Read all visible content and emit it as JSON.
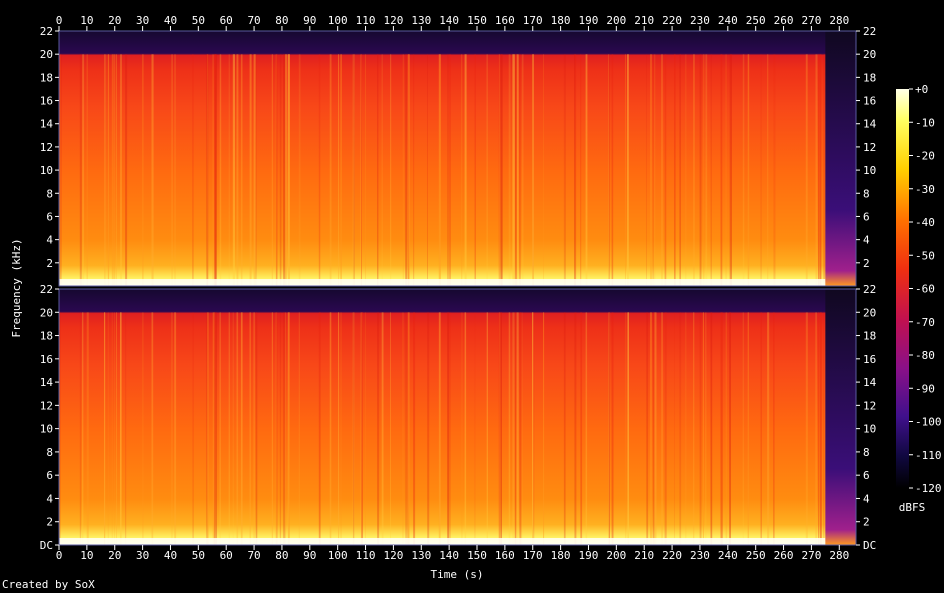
{
  "chart_data": {
    "type": "heatmap",
    "xlabel": "Time (s)",
    "ylabel": "Frequency (kHz)",
    "x_ticks": [
      "0",
      "10",
      "20",
      "30",
      "40",
      "50",
      "60",
      "70",
      "80",
      "90",
      "100",
      "110",
      "120",
      "130",
      "140",
      "150",
      "160",
      "170",
      "180",
      "190",
      "200",
      "210",
      "220",
      "230",
      "240",
      "250",
      "260",
      "270",
      "280"
    ],
    "y_ticks_upper": [
      "22",
      "20",
      "18",
      "16",
      "14",
      "12",
      "10",
      "8",
      "6",
      "4",
      "2"
    ],
    "y_ticks_lower": [
      "22",
      "20",
      "18",
      "16",
      "14",
      "12",
      "10",
      "8",
      "6",
      "4",
      "2",
      "DC"
    ],
    "xlim": [
      0,
      286
    ],
    "ylim_khz": [
      0,
      22
    ],
    "channels": 2,
    "audio_end_s": 275,
    "lowpass_cutoff_khz": 20,
    "colorbar": {
      "label": "dBFS",
      "ticks": [
        "+0",
        "-10",
        "-20",
        "-30",
        "-40",
        "-50",
        "-60",
        "-70",
        "-80",
        "-90",
        "-100",
        "-110",
        "-120"
      ],
      "range": [
        -120,
        0
      ]
    },
    "colors": {
      "background": "#000000",
      "high": "#ffffd0",
      "mid": "#ff8800",
      "low_mid": "#e81818",
      "low": "#4a1a8c",
      "floor": "#000020"
    }
  },
  "footer": {
    "credit": "Created by SoX"
  }
}
